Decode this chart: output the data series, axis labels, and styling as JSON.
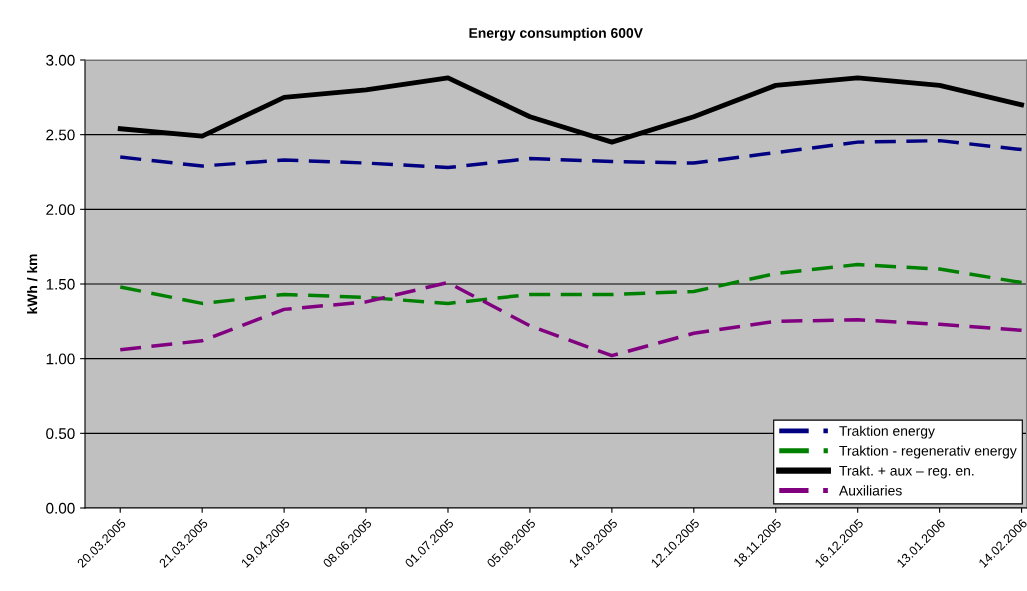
{
  "chart_data": {
    "type": "line",
    "title": "Energy consumption 600V",
    "ylabel": "kWh / km",
    "categories": [
      "20.03.2005",
      "21.03.2005",
      "19.04.2005",
      "08.06.2005",
      "01.07.2005",
      "05.08.2005",
      "14.09.2005",
      "12.10.2005",
      "18.11.2005",
      "16.12.2005",
      "13.01.2006",
      "14.02.2006"
    ],
    "series": [
      {
        "name": "Traktion energy",
        "color": "#000080",
        "line_style": "dashed",
        "values": [
          2.35,
          2.29,
          2.33,
          2.31,
          2.28,
          2.34,
          2.32,
          2.31,
          2.38,
          2.45,
          2.46,
          2.4
        ]
      },
      {
        "name": "Traktion - regenerativ energy",
        "color": "#008000",
        "line_style": "dashed",
        "values": [
          1.48,
          1.37,
          1.43,
          1.41,
          1.37,
          1.43,
          1.43,
          1.45,
          1.57,
          1.63,
          1.6,
          1.51
        ]
      },
      {
        "name": "Trakt. + aux – reg. en.",
        "color": "#000000",
        "line_style": "solid",
        "values": [
          2.54,
          2.49,
          2.75,
          2.8,
          2.88,
          2.62,
          2.45,
          2.62,
          2.83,
          2.88,
          2.83,
          2.7
        ]
      },
      {
        "name": "Auxiliaries",
        "color": "#800080",
        "line_style": "dashed",
        "values": [
          1.06,
          1.12,
          1.33,
          1.38,
          1.51,
          1.22,
          1.02,
          1.17,
          1.25,
          1.26,
          1.23,
          1.19
        ]
      }
    ],
    "ylim": [
      0,
      3
    ],
    "yticks": [
      {
        "value": 0,
        "label": "0.00"
      },
      {
        "value": 0.5,
        "label": "0.50"
      },
      {
        "value": 1,
        "label": "1.00"
      },
      {
        "value": 1.5,
        "label": "1.50"
      },
      {
        "value": 2,
        "label": "2.00"
      },
      {
        "value": 2.5,
        "label": "2.50"
      },
      {
        "value": 3,
        "label": "3.00"
      }
    ],
    "grid": "y",
    "legend": "bottom right",
    "marker": "none"
  }
}
